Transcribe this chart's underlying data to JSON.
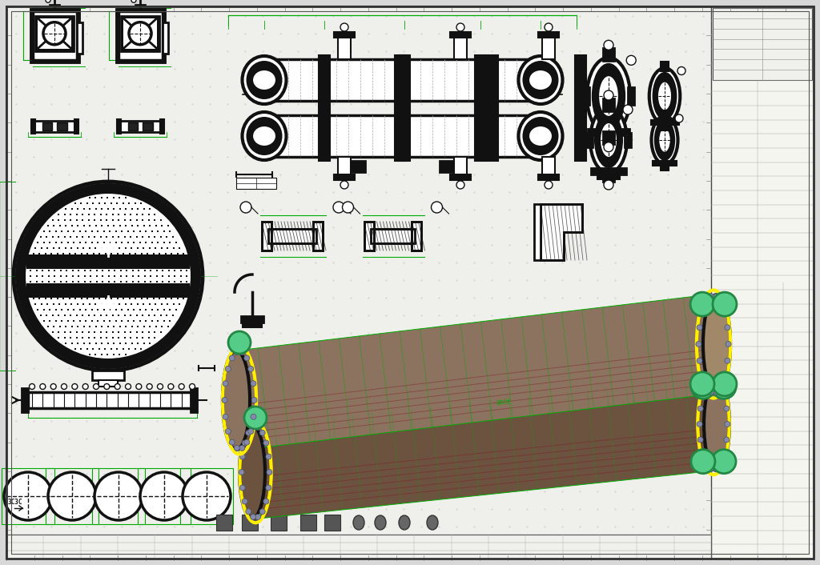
{
  "bg_color": "#d8d8d8",
  "sheet_color": "#efefeb",
  "grid_color": "#c8c8c8",
  "black": "#111111",
  "green": "#00aa00",
  "yellow": "#ffee00",
  "body_3d": "#8B7360",
  "body_top": "#a08868",
  "body_dark": "#6B5340",
  "nozzle_green": "#55cc88",
  "nozzle_green_dk": "#228844",
  "flange_gray": "#8888aa",
  "support_wire": "#ccccdd",
  "white": "#ffffff",
  "dark_gray": "#333333",
  "mid_gray": "#777777",
  "red_brown": "#884040",
  "fig_w": 10.24,
  "fig_h": 7.06,
  "dpi": 100
}
